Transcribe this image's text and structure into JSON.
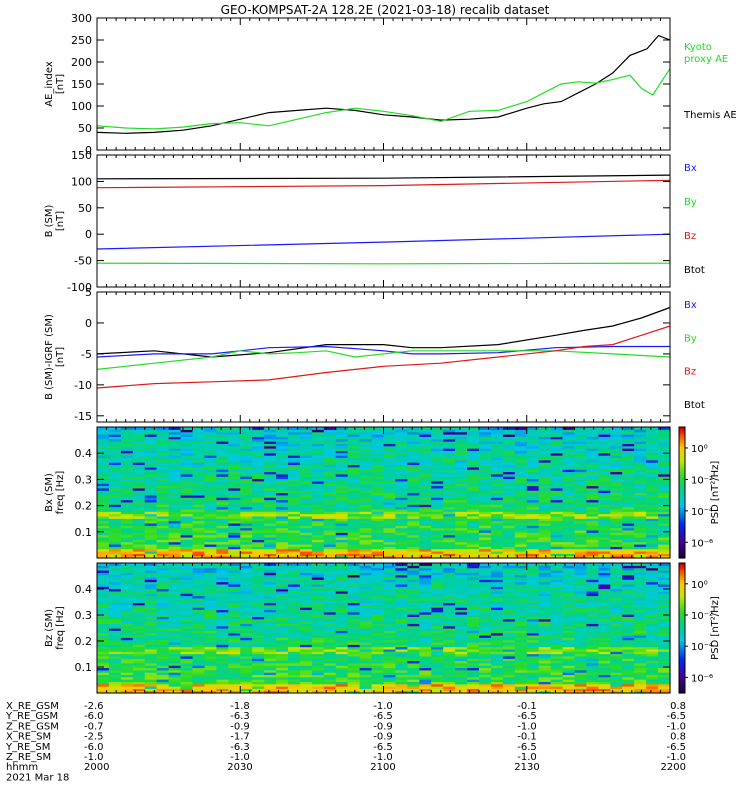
{
  "title": "GEO-KOMPSAT-2A 128.2E (2021-03-18) recalib dataset",
  "colors": {
    "black": "#000000",
    "green": "#22dd22",
    "blue": "#1a1aff",
    "red": "#e01818"
  },
  "chart_data": [
    {
      "type": "line",
      "ylabel": [
        "AE_index",
        "[nT]"
      ],
      "ylim": [
        0,
        300
      ],
      "yticks": [
        0,
        50,
        100,
        150,
        200,
        250,
        300
      ],
      "series": [
        {
          "name": "Themis AE",
          "color": "#000000",
          "x": [
            0,
            0.05,
            0.1,
            0.15,
            0.2,
            0.25,
            0.3,
            0.35,
            0.4,
            0.45,
            0.5,
            0.55,
            0.6,
            0.65,
            0.7,
            0.75,
            0.78,
            0.81,
            0.84,
            0.87,
            0.9,
            0.93,
            0.96,
            0.98,
            1.0
          ],
          "y": [
            40,
            38,
            40,
            45,
            55,
            70,
            85,
            90,
            95,
            90,
            80,
            75,
            68,
            70,
            75,
            95,
            105,
            110,
            130,
            150,
            175,
            215,
            230,
            260,
            250
          ]
        },
        {
          "name": "Kyoto proxy AE",
          "color": "#22dd22",
          "x": [
            0,
            0.05,
            0.1,
            0.15,
            0.2,
            0.25,
            0.3,
            0.35,
            0.4,
            0.45,
            0.5,
            0.55,
            0.6,
            0.65,
            0.7,
            0.75,
            0.78,
            0.81,
            0.84,
            0.87,
            0.9,
            0.93,
            0.95,
            0.97,
            1.0
          ],
          "y": [
            55,
            50,
            48,
            52,
            60,
            62,
            55,
            70,
            85,
            95,
            88,
            78,
            65,
            88,
            90,
            110,
            130,
            150,
            155,
            152,
            160,
            170,
            140,
            125,
            185
          ]
        }
      ],
      "legend": [
        {
          "text": "Kyoto",
          "color": "#22dd22"
        },
        {
          "text": "proxy AE",
          "color": "#22dd22"
        },
        {
          "text": "Themis AE",
          "color": "#000000"
        }
      ]
    },
    {
      "type": "line",
      "ylabel": [
        "B (SM)",
        "[nT]"
      ],
      "ylim": [
        -100,
        150
      ],
      "yticks": [
        -100,
        -50,
        0,
        50,
        100,
        150
      ],
      "series": [
        {
          "name": "Btot",
          "color": "#000000",
          "x": [
            0,
            0.5,
            1.0
          ],
          "y": [
            105,
            106,
            112
          ]
        },
        {
          "name": "Bz",
          "color": "#e01818",
          "x": [
            0,
            0.5,
            1.0
          ],
          "y": [
            88,
            92,
            102
          ]
        },
        {
          "name": "Bx",
          "color": "#1a1aff",
          "x": [
            0,
            0.5,
            1.0
          ],
          "y": [
            -28,
            -15,
            0
          ]
        },
        {
          "name": "By",
          "color": "#22dd22",
          "x": [
            0,
            0.5,
            1.0
          ],
          "y": [
            -55,
            -56,
            -55
          ]
        }
      ],
      "legend": [
        {
          "text": "Bx",
          "color": "#1a1aff"
        },
        {
          "text": "By",
          "color": "#22dd22"
        },
        {
          "text": "Bz",
          "color": "#e01818"
        },
        {
          "text": "Btot",
          "color": "#000000"
        }
      ]
    },
    {
      "type": "line",
      "ylabel": [
        "B (SM)-IGRF (SM)",
        "[nT]"
      ],
      "ylim": [
        -16,
        5
      ],
      "yticks": [
        -15,
        -10,
        -5,
        0,
        5
      ],
      "series": [
        {
          "name": "Btot",
          "color": "#000000",
          "x": [
            0,
            0.1,
            0.2,
            0.3,
            0.4,
            0.5,
            0.55,
            0.6,
            0.7,
            0.8,
            0.85,
            0.9,
            0.95,
            1.0
          ],
          "y": [
            -5,
            -4.5,
            -5.5,
            -4.8,
            -3.5,
            -3.5,
            -4,
            -4,
            -3.5,
            -2,
            -1.2,
            -0.5,
            0.8,
            2.5
          ]
        },
        {
          "name": "Bx",
          "color": "#1a1aff",
          "x": [
            0,
            0.1,
            0.2,
            0.25,
            0.3,
            0.4,
            0.5,
            0.55,
            0.6,
            0.7,
            0.8,
            0.9,
            1.0
          ],
          "y": [
            -5.5,
            -5,
            -5,
            -4.5,
            -4,
            -3.8,
            -4.5,
            -5,
            -5,
            -4.8,
            -4,
            -3.8,
            -3.8
          ]
        },
        {
          "name": "By",
          "color": "#22dd22",
          "x": [
            0,
            0.1,
            0.2,
            0.25,
            0.3,
            0.35,
            0.4,
            0.45,
            0.5,
            0.55,
            0.6,
            0.7,
            0.8,
            0.9,
            1.0
          ],
          "y": [
            -7.5,
            -6.5,
            -5.5,
            -4.5,
            -5,
            -4.8,
            -4.5,
            -5.5,
            -5,
            -4.5,
            -4.5,
            -4.5,
            -4.5,
            -5,
            -5.5
          ]
        },
        {
          "name": "Bz",
          "color": "#e01818",
          "x": [
            0,
            0.1,
            0.2,
            0.3,
            0.4,
            0.5,
            0.6,
            0.7,
            0.8,
            0.85,
            0.9,
            0.95,
            1.0
          ],
          "y": [
            -10.5,
            -9.8,
            -9.5,
            -9.2,
            -8,
            -7,
            -6.5,
            -5.5,
            -4.5,
            -3.8,
            -3.5,
            -2,
            -0.5
          ]
        }
      ],
      "legend": [
        {
          "text": "Bx",
          "color": "#1a1aff"
        },
        {
          "text": "By",
          "color": "#22dd22"
        },
        {
          "text": "Bz",
          "color": "#e01818"
        },
        {
          "text": "Btot",
          "color": "#000000"
        }
      ]
    },
    {
      "type": "heatmap",
      "ylabel": [
        "Bx (SM)",
        "freq [Hz]"
      ],
      "ylim": [
        0,
        0.5
      ],
      "yticks": [
        0.1,
        0.2,
        0.3,
        0.4
      ],
      "colorbar": {
        "label": "PSD [nT²/Hz]",
        "ticks": [
          "10⁰",
          "10⁻²",
          "10⁻⁴",
          "10⁻⁶"
        ]
      }
    },
    {
      "type": "heatmap",
      "ylabel": [
        "Bz (SM)",
        "freq [Hz]"
      ],
      "ylim": [
        0,
        0.5
      ],
      "yticks": [
        0.1,
        0.2,
        0.3,
        0.4
      ],
      "colorbar": {
        "label": "PSD [nT²/Hz]",
        "ticks": [
          "10⁰",
          "10⁻²",
          "10⁻⁴",
          "10⁻⁶"
        ]
      }
    }
  ],
  "ephemeris": {
    "rows": [
      {
        "label": "X_RE_GSM",
        "values": [
          "-2.6",
          "-1.8",
          "-1.0",
          "-0.1",
          "0.8"
        ]
      },
      {
        "label": "Y_RE_GSM",
        "values": [
          "-6.0",
          "-6.3",
          "-6.5",
          "-6.5",
          "-6.5"
        ]
      },
      {
        "label": "Z_RE_GSM",
        "values": [
          "-0.7",
          "-0.9",
          "-0.9",
          "-1.0",
          "-1.0"
        ]
      },
      {
        "label": "X_RE_SM",
        "values": [
          "-2.5",
          "-1.7",
          "-0.9",
          "-0.1",
          "0.8"
        ]
      },
      {
        "label": "Y_RE_SM",
        "values": [
          "-6.0",
          "-6.3",
          "-6.5",
          "-6.5",
          "-6.5"
        ]
      },
      {
        "label": "Z_RE_SM",
        "values": [
          "-1.0",
          "-1.0",
          "-1.0",
          "-1.0",
          "-1.0"
        ]
      },
      {
        "label": "hhmm",
        "values": [
          "2000",
          "2030",
          "2100",
          "2130",
          "2200"
        ]
      }
    ],
    "date": "2021 Mar 18"
  }
}
